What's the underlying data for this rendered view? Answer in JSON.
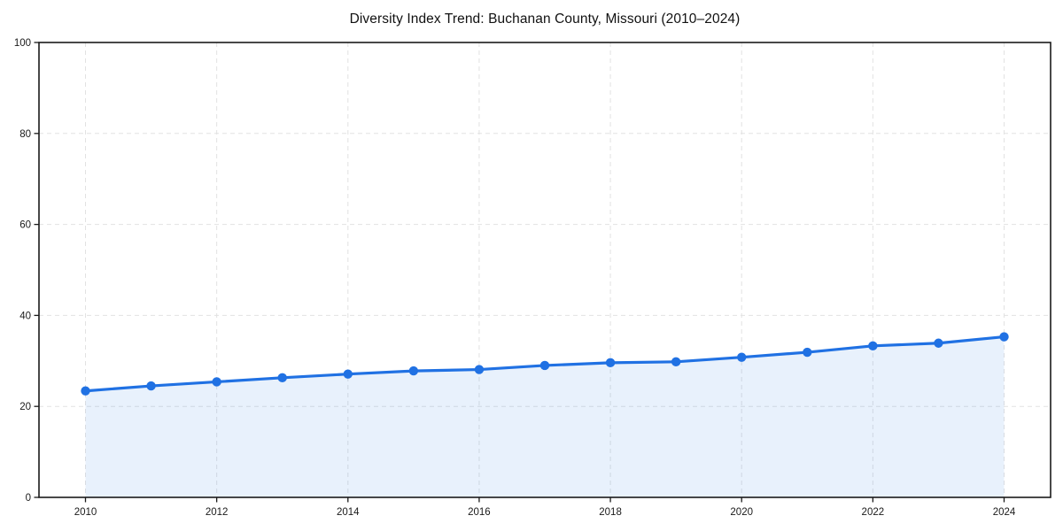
{
  "chart_data": {
    "type": "area",
    "title": "Diversity Index Trend: Buchanan County, Missouri (2010–2024)",
    "x": [
      2010,
      2011,
      2012,
      2013,
      2014,
      2015,
      2016,
      2017,
      2018,
      2019,
      2020,
      2021,
      2022,
      2023,
      2024
    ],
    "series": [
      {
        "name": "Diversity Index",
        "values": [
          23.4,
          24.5,
          25.4,
          26.3,
          27.1,
          27.8,
          28.1,
          29.0,
          29.6,
          29.8,
          30.8,
          31.9,
          33.3,
          33.9,
          35.3
        ]
      }
    ],
    "xlabel": "",
    "ylabel": "",
    "xlim": [
      2010,
      2024
    ],
    "ylim": [
      0,
      100
    ],
    "x_ticks": [
      2010,
      2012,
      2014,
      2016,
      2018,
      2020,
      2022,
      2024
    ],
    "y_ticks": [
      0,
      20,
      40,
      60,
      80,
      100
    ],
    "grid": true,
    "grid_style": "dashed",
    "legend_position": "none",
    "colors": {
      "line": "#2071e3",
      "marker": "#2071e3",
      "fill": "rgba(32, 113, 227, 0.10)",
      "grid": "#e2e2e2",
      "axis": "#1a1a1a",
      "tick_text": "#1a1a1a",
      "title_text": "#111111",
      "background": "#ffffff"
    }
  }
}
